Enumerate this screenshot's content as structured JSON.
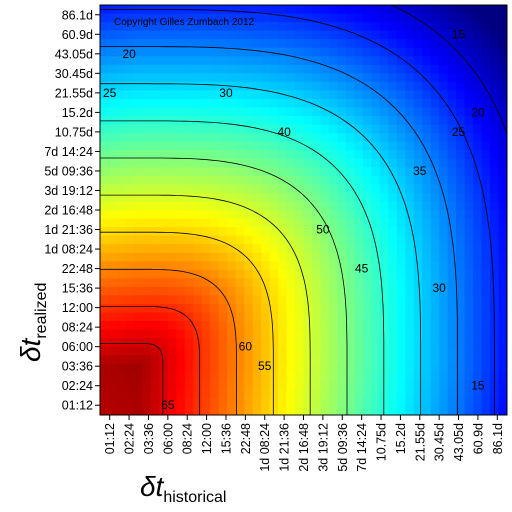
{
  "chart_data": {
    "type": "heatmap",
    "title": "",
    "copyright": "Copyright Gilles Zumbach 2012",
    "xlabel": {
      "symbol": "δt",
      "subscript": "historical"
    },
    "ylabel": {
      "symbol": "δt",
      "subscript": "realized"
    },
    "x_ticks": [
      "01:12",
      "02:24",
      "03:36",
      "06:00",
      "08:24",
      "12:00",
      "15:36",
      "22:48",
      "1d 08:24",
      "1d 21:36",
      "2d 16:48",
      "3d 19:12",
      "5d 09:36",
      "7d 14:24",
      "10.75d",
      "15.2d",
      "21.55d",
      "30.45d",
      "43.05d",
      "60.9d",
      "86.1d"
    ],
    "y_ticks": [
      "86.1d",
      "60.9d",
      "43.05d",
      "30.45d",
      "21.55d",
      "15.2d",
      "10.75d",
      "7d 14:24",
      "5d 09:36",
      "3d 19:12",
      "2d 16:48",
      "1d 21:36",
      "1d 08:24",
      "22:48",
      "15:36",
      "12:00",
      "08:24",
      "06:00",
      "03:36",
      "02:24",
      "01:12"
    ],
    "color_range": [
      10,
      70
    ],
    "colormap": "jet",
    "contour_labels": [
      {
        "label": "15",
        "x": "43.05d",
        "y": "60.9d"
      },
      {
        "label": "20",
        "x": "02:24",
        "y": "43.05d"
      },
      {
        "label": "25",
        "x": "01:12",
        "y": "21.55d"
      },
      {
        "label": "30",
        "x": "15:36",
        "y": "21.55d"
      },
      {
        "label": "20",
        "x": "60.9d",
        "y": "15.2d"
      },
      {
        "label": "25",
        "x": "43.05d",
        "y": "10.75d"
      },
      {
        "label": "40",
        "x": "1d 21:36",
        "y": "10.75d"
      },
      {
        "label": "35",
        "x": "21.55d",
        "y": "5d 09:36"
      },
      {
        "label": "50",
        "x": "3d 19:12",
        "y": "1d 21:36"
      },
      {
        "label": "45",
        "x": "7d 14:24",
        "y": "22:48"
      },
      {
        "label": "30",
        "x": "30.45d",
        "y": "15:36"
      },
      {
        "label": "60",
        "x": "22:48",
        "y": "06:00"
      },
      {
        "label": "55",
        "x": "1d 08:24",
        "y": "03:36"
      },
      {
        "label": "65",
        "x": "06:00",
        "y": "01:12"
      },
      {
        "label": "15",
        "x": "60.9d",
        "y": "02:24"
      }
    ]
  }
}
